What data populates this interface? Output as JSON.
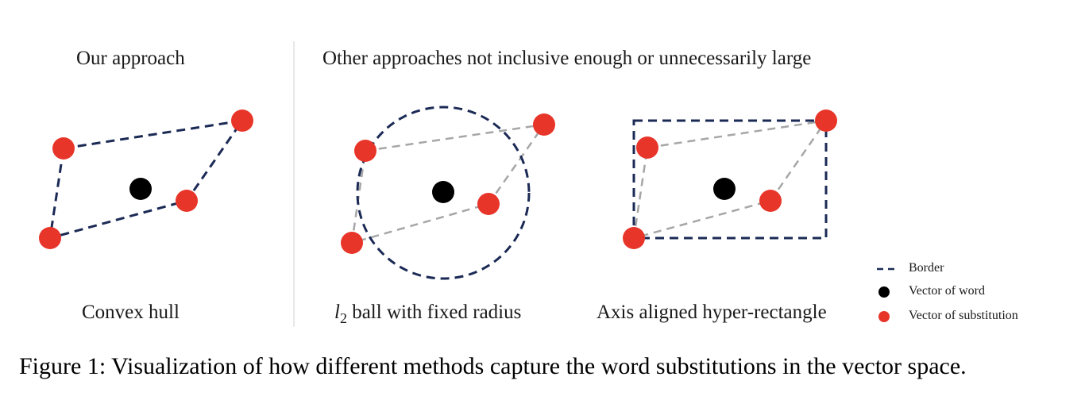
{
  "colors": {
    "border": "#1b2a55",
    "connector": "#a6a6a6",
    "word_vector": "#000000",
    "substitution_vector": "#e8352a",
    "separator": "#d9d9d9"
  },
  "headings": {
    "left": "Our approach",
    "right": "Other approaches not inclusive enough or unnecessarily large"
  },
  "panels": [
    {
      "id": "convex-hull",
      "label": "Convex hull"
    },
    {
      "id": "l2-ball",
      "label_symbol": "l",
      "label_subscript": "2",
      "label_rest": " ball with fixed radius"
    },
    {
      "id": "hyper-rectangle",
      "label": "Axis aligned hyper-rectangle"
    }
  ],
  "legend": {
    "border": "Border",
    "word": "Vector of word",
    "substitution": "Vector of substitution"
  },
  "caption": "Figure 1: Visualization of how different methods capture the word substitutions in the vector space."
}
